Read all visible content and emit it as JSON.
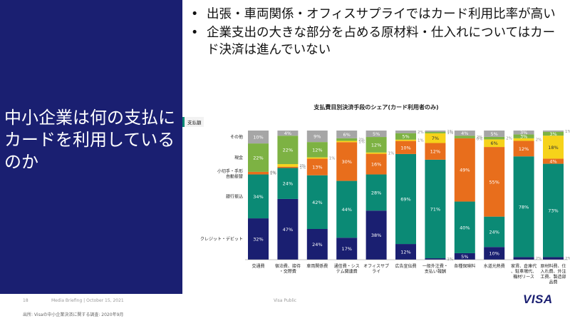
{
  "left_heading": "中小企業は何の支払にカードを利用しているのか",
  "bullets": [
    "出張・車両関係・オフィスサプライではカード利用比率が高い",
    "企業支出の大きな部分を占める原材料・仕入れについてはカード決済は進んでいない"
  ],
  "bullet_glyph": "•",
  "footer": {
    "page_number": "18",
    "briefing": "Media Briefing | October 15, 2021",
    "classification": "Visa Public",
    "source": "出所: Visaの中小企業決済に関する調査: 2020年9月",
    "logo": "VISA"
  },
  "colors": {
    "panel_bg": "#1a1f71",
    "credit_debit": "#1a1f71",
    "bank_transfer": "#0b8a75",
    "auto_debit": "#e86e1c",
    "check_bill": "#f6d31a",
    "cash": "#7db243",
    "other": "#a6a6a6"
  },
  "chart_data": {
    "type": "bar",
    "stacked": true,
    "percent": true,
    "title": "支払費目別決済手段のシェア(カード利用者のみ)",
    "tag": "支払額",
    "categories": [
      "交通費",
      "宿泊費、接待・交際費",
      "車両関係費",
      "通信費・システム関連費",
      "オフィスサプライ",
      "広告宣伝費",
      "一般外注費・支払い報酬",
      "各種保険料",
      "水道光熱費",
      "家賃、倉庫代、駐車場代、機材リース",
      "原材料費、仕入れ費、外注工費、製造部品費"
    ],
    "series": [
      {
        "name": "クレジット・デビット",
        "color_key": "credit_debit",
        "values": [
          32,
          47,
          24,
          17,
          38,
          12,
          1,
          5,
          10,
          2,
          2
        ],
        "labels": [
          "32%",
          "47%",
          "24%",
          "17%",
          "38%",
          "12%",
          "1%",
          "5%",
          "10%",
          "2%",
          "2%"
        ]
      },
      {
        "name": "銀行振込",
        "color_key": "bank_transfer",
        "values": [
          34,
          24,
          42,
          44,
          28,
          69,
          71,
          40,
          24,
          78,
          73
        ],
        "labels": [
          "34%",
          "24%",
          "42%",
          "44%",
          "28%",
          "69%",
          "71%",
          "40%",
          "24%",
          "78%",
          "73%"
        ]
      },
      {
        "name": "自動振替",
        "color_key": "auto_debit",
        "values": [
          2,
          1,
          13,
          30,
          16,
          10,
          12,
          49,
          55,
          12,
          4
        ],
        "labels": [
          "2%",
          "1%",
          "13%",
          "30%",
          "16%",
          "10%",
          "12%",
          "49%",
          "55%",
          "12%",
          "4%"
        ]
      },
      {
        "name": "小切手・手形",
        "color_key": "check_bill",
        "values": [
          0,
          2,
          1,
          1,
          1,
          1,
          7,
          0,
          6,
          2,
          18
        ],
        "labels": [
          "0%",
          "2%",
          "1%",
          "1%",
          "1%",
          "1%",
          "7%",
          "0%",
          "6%",
          "2%",
          "18%"
        ]
      },
      {
        "name": "現金",
        "color_key": "cash",
        "values": [
          22,
          22,
          12,
          2,
          12,
          5,
          1,
          2,
          2,
          3,
          3
        ],
        "labels": [
          "22%",
          "22%",
          "12%",
          "2%",
          "12%",
          "5%",
          "1%",
          "2%",
          "2%",
          "3%",
          "3%"
        ]
      },
      {
        "name": "その他",
        "color_key": "other",
        "values": [
          10,
          4,
          9,
          6,
          5,
          2,
          1,
          4,
          5,
          3,
          1
        ],
        "labels": [
          "10%",
          "4%",
          "9%",
          "6%",
          "5%",
          "2%",
          "1%",
          "4%",
          "5%",
          "3%",
          "1%"
        ]
      }
    ],
    "xlabel": "",
    "ylabel": "",
    "ylim": [
      0,
      100
    ]
  }
}
